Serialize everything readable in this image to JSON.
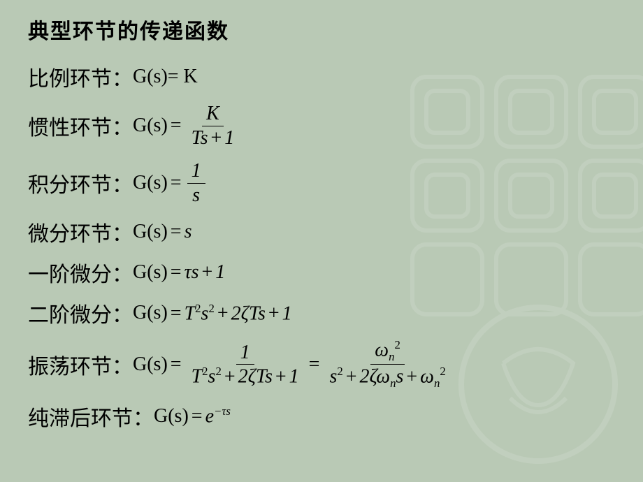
{
  "background_color": "#b9c9b5",
  "text_color": "#000000",
  "title_fontsize": 30,
  "label_fontsize": 30,
  "equation_fontsize": 28,
  "title": "典型环节的传递函数",
  "rows": {
    "proportional": {
      "label": "比例环节：",
      "prefix": "G(s)",
      "eq": " = K"
    },
    "inertial": {
      "label": "惯性环节：",
      "prefix": "G(s)",
      "numer": "K",
      "denom_html": "<span>Ts</span><span class='op'>+</span>1"
    },
    "integral": {
      "label": "积分环节：",
      "prefix": "G(s)",
      "numer": "1",
      "denom_html": "<span>s</span>"
    },
    "derivative": {
      "label": "微分环节：",
      "prefix": "G(s)",
      "eq_html": "<span class='op'>=</span><span>s</span>"
    },
    "first_order": {
      "label": "一阶微分：",
      "prefix": "G(s)",
      "eq_html": "<span class='op'>=</span><span>τs</span><span class='op'>+</span>1"
    },
    "second_order": {
      "label": "二阶微分：",
      "prefix": "G(s)",
      "eq_html": "<span class='op'>=</span><span>T</span><span class='sup'>2</span><span>s</span><span class='sup'>2</span><span class='op'>+</span>2<span>ζTs</span><span class='op'>+</span>1"
    },
    "oscillation": {
      "label": "振荡环节：",
      "prefix": "G(s)",
      "frac1_num": "1",
      "frac1_den_html": "<span>T</span><span class='sup'>2</span><span>s</span><span class='sup'>2</span><span class='op'>+</span>2<span>ζTs</span><span class='op'>+</span>1",
      "frac2_num_html": "<span>ω</span><span class='sub'>n</span><span class='sup'>2</span>",
      "frac2_den_html": "<span>s</span><span class='sup'>2</span><span class='op'>+</span>2<span>ζω</span><span class='sub'>n</span><span>s</span><span class='op'>+</span><span>ω</span><span class='sub'>n</span><span class='sup'>2</span>"
    },
    "delay": {
      "label": "纯滞后环节：",
      "prefix": "G(s)",
      "eq_html": "<span class='op'>=</span><span>e</span><span class='sup' style='font-style:italic'>−τs</span>"
    }
  },
  "decoration": {
    "pattern_color": "#ffffff",
    "pattern_opacity": 0.12
  }
}
